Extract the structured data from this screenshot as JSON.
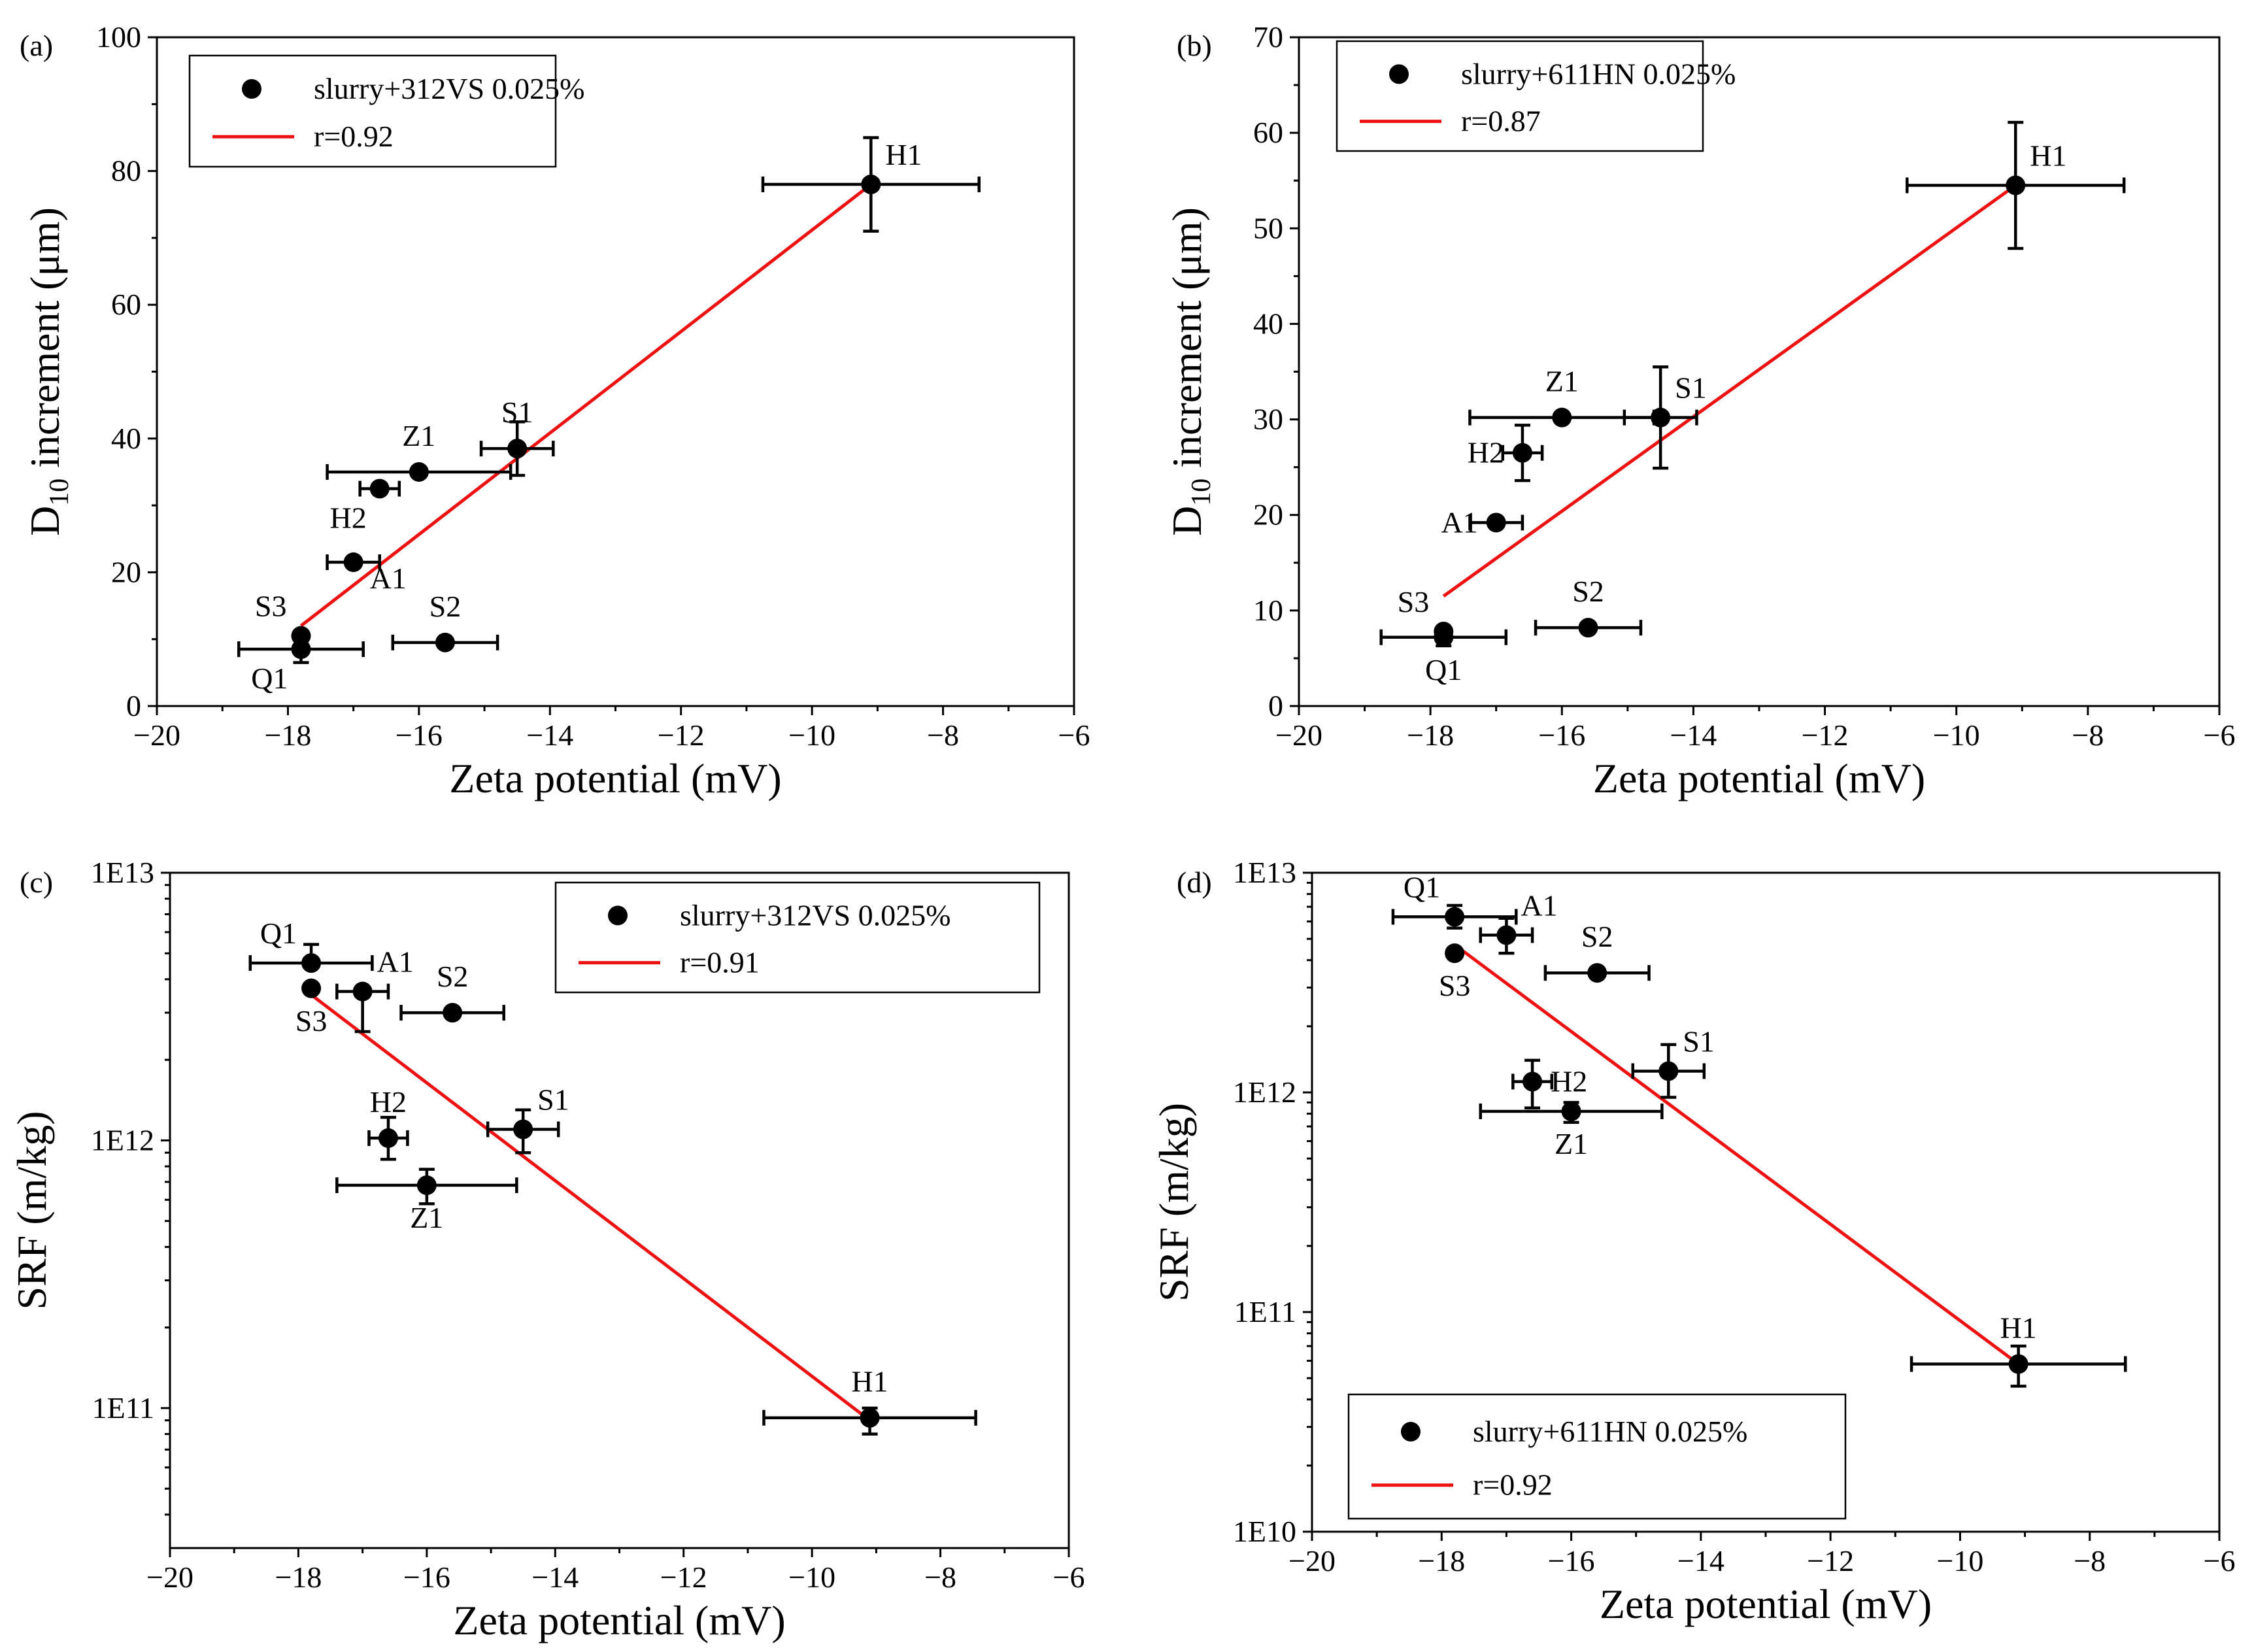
{
  "colors": {
    "fit_line": "#ee1111",
    "marker": "#000000",
    "background": "#ffffff"
  },
  "chart_data": [
    {
      "panel": "(a)",
      "type": "scatter",
      "yscale": "linear",
      "xlabel": "Zeta potential (mV)",
      "ylabel": {
        "main": "D",
        "sub": "10",
        "rest": " increment (μm)"
      },
      "xlim": [
        -20,
        -6
      ],
      "ylim": [
        0,
        100
      ],
      "xticks": [
        -20,
        -18,
        -16,
        -14,
        -12,
        -10,
        -8,
        -6
      ],
      "yticks": [
        0,
        20,
        40,
        60,
        80,
        100
      ],
      "ytick_labels": [
        "0",
        "20",
        "40",
        "60",
        "80",
        "100"
      ],
      "legend": {
        "placement": "top-left",
        "series_label": "slurry+312VS 0.025%",
        "fit_label": "r=0.92"
      },
      "fit": {
        "x": [
          -17.8,
          -9.1
        ],
        "y": [
          12,
          78
        ]
      },
      "points": [
        {
          "label": "H1",
          "x": -9.1,
          "y": 78,
          "xerr": 1.65,
          "yerr": 7,
          "label_pos": "upper-right"
        },
        {
          "label": "S1",
          "x": -14.5,
          "y": 38.5,
          "xerr": 0.55,
          "yerr": 4,
          "label_pos": "above"
        },
        {
          "label": "Z1",
          "x": -16.0,
          "y": 35,
          "xerr": 1.4,
          "yerr": 0,
          "label_pos": "above"
        },
        {
          "label": "H2",
          "x": -16.6,
          "y": 32.5,
          "xerr": 0.3,
          "yerr": 0,
          "label_pos": "lower-left"
        },
        {
          "label": "A1",
          "x": -17.0,
          "y": 21.5,
          "xerr": 0.4,
          "yerr": 0,
          "label_pos": "lower-right"
        },
        {
          "label": "S3",
          "x": -17.8,
          "y": 10.5,
          "xerr": 0,
          "yerr": 0,
          "label_pos": "upper-left"
        },
        {
          "label": "Q1",
          "x": -17.8,
          "y": 8.5,
          "xerr": 0.95,
          "yerr": 2,
          "label_pos": "lower-left"
        },
        {
          "label": "S2",
          "x": -15.6,
          "y": 9.5,
          "xerr": 0.8,
          "yerr": 0,
          "label_pos": "above"
        }
      ]
    },
    {
      "panel": "(b)",
      "type": "scatter",
      "yscale": "linear",
      "xlabel": "Zeta potential (mV)",
      "ylabel": {
        "main": "D",
        "sub": "10",
        "rest": " increment (μm)"
      },
      "xlim": [
        -20,
        -6
      ],
      "ylim": [
        0,
        70
      ],
      "xticks": [
        -20,
        -18,
        -16,
        -14,
        -12,
        -10,
        -8,
        -6
      ],
      "yticks": [
        0,
        10,
        20,
        30,
        40,
        50,
        60,
        70
      ],
      "ytick_labels": [
        "0",
        "10",
        "20",
        "30",
        "40",
        "50",
        "60",
        "70"
      ],
      "legend": {
        "placement": "top-left",
        "series_label": "slurry+611HN 0.025%",
        "fit_label": "r=0.87"
      },
      "fit": {
        "x": [
          -17.8,
          -9.1
        ],
        "y": [
          11.5,
          54.5
        ]
      },
      "points": [
        {
          "label": "H1",
          "x": -9.1,
          "y": 54.5,
          "xerr": 1.65,
          "yerr": 6.6,
          "label_pos": "upper-right"
        },
        {
          "label": "S1",
          "x": -14.5,
          "y": 30.2,
          "xerr": 0.55,
          "yerr": 5.3,
          "label_pos": "upper-right"
        },
        {
          "label": "Z1",
          "x": -16.0,
          "y": 30.2,
          "xerr": 1.4,
          "yerr": 0,
          "label_pos": "above"
        },
        {
          "label": "H2",
          "x": -16.6,
          "y": 26.5,
          "xerr": 0.3,
          "yerr": 2.9,
          "label_pos": "left"
        },
        {
          "label": "A1",
          "x": -17.0,
          "y": 19.2,
          "xerr": 0.4,
          "yerr": 0,
          "label_pos": "left"
        },
        {
          "label": "S3",
          "x": -17.8,
          "y": 7.8,
          "xerr": 0,
          "yerr": 0,
          "label_pos": "upper-left"
        },
        {
          "label": "Q1",
          "x": -17.8,
          "y": 7.2,
          "xerr": 0.95,
          "yerr": 0.9,
          "label_pos": "below"
        },
        {
          "label": "S2",
          "x": -15.6,
          "y": 8.2,
          "xerr": 0.8,
          "yerr": 0,
          "label_pos": "above"
        }
      ]
    },
    {
      "panel": "(c)",
      "type": "scatter",
      "yscale": "log",
      "xlabel": "Zeta potential (mV)",
      "ylabel": {
        "main": "SRF (m/kg)",
        "sub": "",
        "rest": ""
      },
      "xlim": [
        -20,
        -6
      ],
      "ylim": [
        30000000000,
        10000000000000
      ],
      "xticks": [
        -20,
        -18,
        -16,
        -14,
        -12,
        -10,
        -8,
        -6
      ],
      "yticks": [
        100000000000,
        1000000000000,
        10000000000000
      ],
      "ytick_labels": [
        "1E11",
        "1E12",
        "1E13"
      ],
      "legend": {
        "placement": "top-right",
        "series_label": "slurry+312VS 0.025%",
        "fit_label": "r=0.91"
      },
      "fit": {
        "x": [
          -17.8,
          -9.1
        ],
        "y": [
          3500000000000,
          90000000000
        ]
      },
      "points": [
        {
          "label": "H1",
          "x": -9.1,
          "y": 92000000000,
          "xerr": 1.65,
          "yerr_lo": 80000000000,
          "yerr_hi": 100000000000,
          "label_pos": "above"
        },
        {
          "label": "S1",
          "x": -14.5,
          "y": 1100000000000,
          "xerr": 0.55,
          "yerr_lo": 900000000000,
          "yerr_hi": 1300000000000,
          "label_pos": "upper-right"
        },
        {
          "label": "S2",
          "x": -15.6,
          "y": 3000000000000,
          "xerr": 0.8,
          "yerr_lo": 3000000000000,
          "yerr_hi": 3000000000000,
          "label_pos": "above"
        },
        {
          "label": "Z1",
          "x": -16.0,
          "y": 680000000000,
          "xerr": 1.4,
          "yerr_lo": 580000000000,
          "yerr_hi": 780000000000,
          "label_pos": "below"
        },
        {
          "label": "H2",
          "x": -16.6,
          "y": 1020000000000,
          "xerr": 0.3,
          "yerr_lo": 850000000000,
          "yerr_hi": 1220000000000,
          "label_pos": "above"
        },
        {
          "label": "A1",
          "x": -17.0,
          "y": 3600000000000,
          "xerr": 0.4,
          "yerr_lo": 2550000000000,
          "yerr_hi": 3600000000000,
          "label_pos": "upper-right"
        },
        {
          "label": "S3",
          "x": -17.8,
          "y": 3700000000000,
          "xerr": 0,
          "yerr_lo": 3700000000000,
          "yerr_hi": 3700000000000,
          "label_pos": "below"
        },
        {
          "label": "Q1",
          "x": -17.8,
          "y": 4600000000000,
          "xerr": 0.95,
          "yerr_lo": 4600000000000,
          "yerr_hi": 5400000000000,
          "label_pos": "upper-left"
        }
      ]
    },
    {
      "panel": "(d)",
      "type": "scatter",
      "yscale": "log",
      "xlabel": "Zeta potential (mV)",
      "ylabel": {
        "main": "SRF (m/kg)",
        "sub": "",
        "rest": ""
      },
      "xlim": [
        -20,
        -6
      ],
      "ylim": [
        10000000000,
        10000000000000
      ],
      "xticks": [
        -20,
        -18,
        -16,
        -14,
        -12,
        -10,
        -8,
        -6
      ],
      "yticks": [
        10000000000,
        100000000000,
        1000000000000,
        10000000000000
      ],
      "ytick_labels": [
        "1E10",
        "1E11",
        "1E12",
        "1E13"
      ],
      "legend": {
        "placement": "bottom-left",
        "series_label": "slurry+611HN 0.025%",
        "fit_label": "r=0.92"
      },
      "fit": {
        "x": [
          -17.8,
          -9.1
        ],
        "y": [
          4700000000000,
          58000000000
        ]
      },
      "points": [
        {
          "label": "H1",
          "x": -9.1,
          "y": 58000000000,
          "xerr": 1.65,
          "yerr_lo": 46000000000,
          "yerr_hi": 70000000000,
          "label_pos": "above"
        },
        {
          "label": "S1",
          "x": -14.5,
          "y": 1250000000000,
          "xerr": 0.55,
          "yerr_lo": 950000000000,
          "yerr_hi": 1650000000000,
          "label_pos": "upper-right"
        },
        {
          "label": "H2",
          "x": -16.6,
          "y": 1120000000000,
          "xerr": 0.3,
          "yerr_lo": 850000000000,
          "yerr_hi": 1400000000000,
          "label_pos": "right"
        },
        {
          "label": "Z1",
          "x": -16.0,
          "y": 820000000000,
          "xerr": 1.4,
          "yerr_lo": 730000000000,
          "yerr_hi": 900000000000,
          "label_pos": "below"
        },
        {
          "label": "S2",
          "x": -15.6,
          "y": 3500000000000,
          "xerr": 0.8,
          "yerr_lo": 3500000000000,
          "yerr_hi": 3500000000000,
          "label_pos": "above"
        },
        {
          "label": "A1",
          "x": -17.0,
          "y": 5200000000000,
          "xerr": 0.4,
          "yerr_lo": 4300000000000,
          "yerr_hi": 6200000000000,
          "label_pos": "upper-right"
        },
        {
          "label": "Q1",
          "x": -17.8,
          "y": 6300000000000,
          "xerr": 0.95,
          "yerr_lo": 5600000000000,
          "yerr_hi": 7100000000000,
          "label_pos": "upper-left"
        },
        {
          "label": "S3",
          "x": -17.8,
          "y": 4300000000000,
          "xerr": 0,
          "yerr_lo": 4300000000000,
          "yerr_hi": 4300000000000,
          "label_pos": "below"
        }
      ]
    }
  ]
}
